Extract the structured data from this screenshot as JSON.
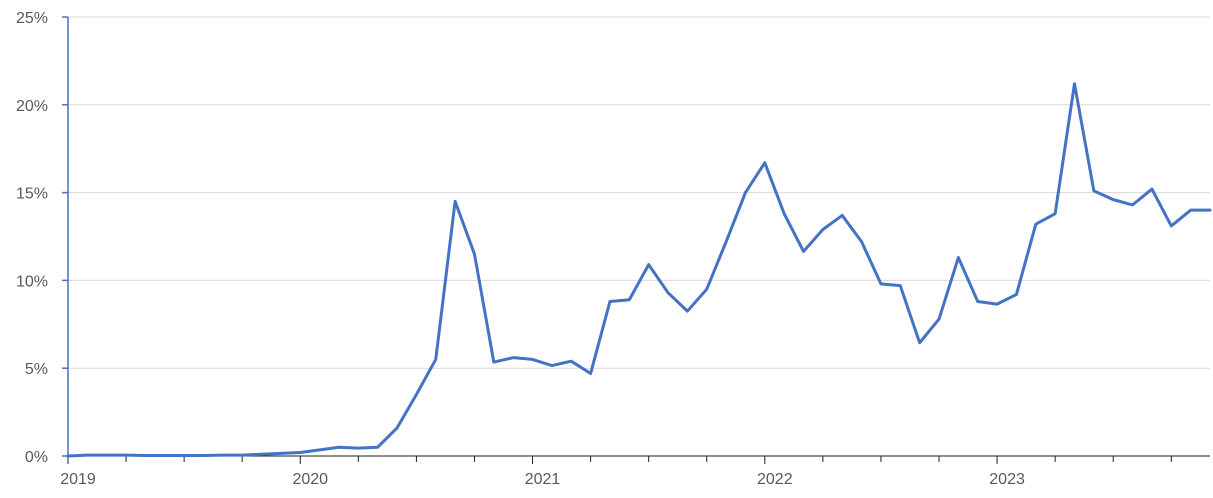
{
  "chart_data": {
    "type": "line",
    "title": "",
    "xlabel": "",
    "ylabel": "",
    "ylim": [
      0,
      25
    ],
    "y_ticks": [
      0,
      5,
      10,
      15,
      20,
      25
    ],
    "y_tick_labels": [
      "0%",
      "5%",
      "10%",
      "15%",
      "20%",
      "25%"
    ],
    "x_tick_labels": [
      "2019",
      "2020",
      "2021",
      "2022",
      "2023"
    ],
    "x_ticks": [
      2019.0,
      2020.0,
      2021.0,
      2022.0,
      2023.0
    ],
    "xlim": [
      2019.0,
      2023.9167
    ],
    "grid": "horizontal",
    "legend": "none",
    "colors": {
      "line": "#4472C4",
      "axis": "#4472C4",
      "grid": "#D9D9D9",
      "text": "#595959"
    },
    "series": [
      {
        "x": [
          2019.0,
          2019.0833,
          2019.1667,
          2019.25,
          2019.3333,
          2019.4167,
          2019.5,
          2019.5833,
          2019.6667,
          2019.75,
          2019.8333,
          2019.9167,
          2020.0,
          2020.0833,
          2020.1667,
          2020.25,
          2020.3333,
          2020.4167,
          2020.5,
          2020.5833,
          2020.6667,
          2020.75,
          2020.8333,
          2020.9167,
          2021.0,
          2021.0833,
          2021.1667,
          2021.25,
          2021.3333,
          2021.4167,
          2021.5,
          2021.5833,
          2021.6667,
          2021.75,
          2021.8333,
          2021.9167,
          2022.0,
          2022.0833,
          2022.1667,
          2022.25,
          2022.3333,
          2022.4167,
          2022.5,
          2022.5833,
          2022.6667,
          2022.75,
          2022.8333,
          2022.9167,
          2023.0,
          2023.0833,
          2023.1667,
          2023.25,
          2023.3333,
          2023.4167,
          2023.5,
          2023.5833,
          2023.6667,
          2023.75,
          2023.8333,
          2023.9167
        ],
        "values": [
          0.0,
          0.05,
          0.05,
          0.05,
          0.03,
          0.03,
          0.03,
          0.03,
          0.05,
          0.05,
          0.1,
          0.15,
          0.2,
          0.35,
          0.5,
          0.45,
          0.5,
          1.6,
          3.5,
          5.5,
          14.5,
          11.5,
          5.35,
          5.6,
          5.5,
          5.15,
          5.4,
          4.7,
          8.8,
          8.9,
          10.9,
          9.3,
          8.25,
          9.5,
          12.2,
          15.0,
          16.7,
          13.8,
          11.65,
          12.9,
          13.7,
          12.2,
          9.8,
          9.7,
          6.45,
          7.8,
          11.3,
          8.8,
          8.65,
          9.2,
          13.2,
          13.8,
          21.2,
          15.1,
          14.6,
          14.3,
          15.2,
          13.1,
          14.0,
          14.0
        ]
      }
    ]
  }
}
